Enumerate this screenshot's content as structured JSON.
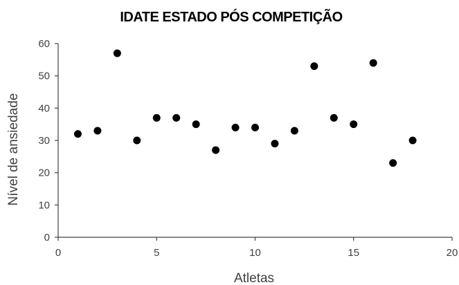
{
  "chart_data": {
    "type": "scatter",
    "title": "IDATE ESTADO PÓS COMPETIÇÃO",
    "xlabel": "Atletas",
    "ylabel": "Nível de ansiedade",
    "xlim": [
      0,
      20
    ],
    "ylim": [
      0,
      60
    ],
    "xticks": [
      0,
      5,
      10,
      15,
      20
    ],
    "yticks": [
      0,
      10,
      20,
      30,
      40,
      50,
      60
    ],
    "grid": false,
    "series": [
      {
        "x": [
          1,
          2,
          3,
          4,
          5,
          6,
          7,
          8,
          9,
          10,
          11,
          12,
          13,
          14,
          15,
          16,
          17,
          18
        ],
        "y": [
          32,
          33,
          57,
          30,
          37,
          37,
          35,
          27,
          34,
          34,
          29,
          33,
          53,
          37,
          35,
          54,
          23,
          30
        ],
        "color": "#000000"
      }
    ]
  }
}
